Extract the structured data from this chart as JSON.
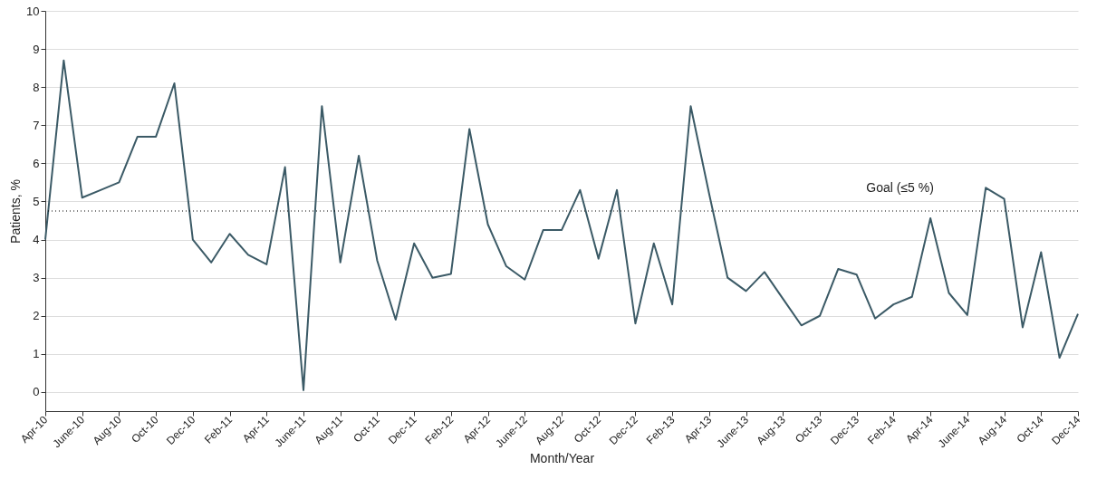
{
  "chart_data": {
    "type": "line",
    "xlabel": "Month/Year",
    "ylabel": "Patients, %",
    "categories": [
      "Apr-10",
      null,
      "June-10",
      null,
      "Aug-10",
      null,
      "Oct-10",
      null,
      "Dec-10",
      null,
      "Feb-11",
      null,
      "Apr-11",
      null,
      "June-11",
      null,
      "Aug-11",
      null,
      "Oct-11",
      null,
      "Dec-11",
      null,
      "Feb-12",
      null,
      "Apr-12",
      null,
      "June-12",
      null,
      "Aug-12",
      null,
      "Oct-12",
      null,
      "Dec-12",
      null,
      "Feb-13",
      null,
      "Apr-13",
      null,
      "June-13",
      null,
      "Aug-13",
      null,
      "Oct-13",
      null,
      "Dec-13",
      null,
      "Feb-14",
      null,
      "Apr-14",
      null,
      "June-14",
      null,
      "Aug-14",
      null,
      "Oct-14",
      null,
      "Dec-14"
    ],
    "series": [
      {
        "color": "#3b5a66",
        "values": [
          4.0,
          8.7,
          5.1,
          5.3,
          5.5,
          6.7,
          6.7,
          8.1,
          4.0,
          3.4,
          4.15,
          3.6,
          3.35,
          5.9,
          0.05,
          7.5,
          3.4,
          6.2,
          3.45,
          1.9,
          3.9,
          3.0,
          3.1,
          6.9,
          4.4,
          3.3,
          2.95,
          4.25,
          4.25,
          5.3,
          3.5,
          5.3,
          1.8,
          3.9,
          2.3,
          7.5,
          5.2,
          3.0,
          2.65,
          3.15,
          2.45,
          1.75,
          2.0,
          3.23,
          3.08,
          1.93,
          2.3,
          2.5,
          4.56,
          2.6,
          2.02,
          5.36,
          5.07,
          1.7,
          3.67,
          0.9,
          2.05
        ]
      }
    ],
    "ylim": [
      -0.5,
      10
    ],
    "yticks": [
      0,
      1,
      2,
      3,
      4,
      5,
      6,
      7,
      8,
      9,
      10
    ],
    "ref_lines": [
      {
        "axis": "y",
        "value": 4.75,
        "label": "Goal (≤5 %)",
        "color": "#000000",
        "line_style": "dotted"
      }
    ],
    "grid": "y",
    "marker": "none",
    "line_style": "solid"
  }
}
